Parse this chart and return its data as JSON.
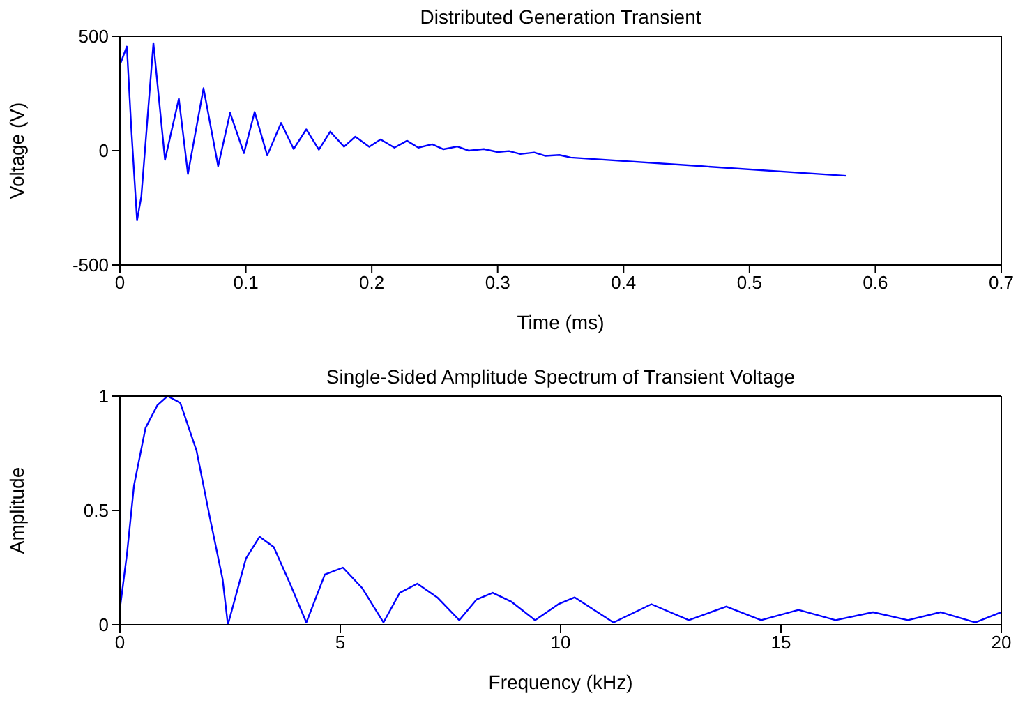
{
  "chart_data": [
    {
      "type": "line",
      "title": "Distributed Generation Transient",
      "xlabel": "Time (ms)",
      "ylabel": "Voltage (V)",
      "xlim": [
        0,
        0.7
      ],
      "xticks": [
        0,
        0.1,
        0.2,
        0.3,
        0.4,
        0.5,
        0.6,
        0.7
      ],
      "ylim": [
        -500,
        500
      ],
      "yticks": [
        -500,
        0,
        500
      ],
      "marker": "none",
      "line_style": "solid",
      "series": [
        {
          "color": "#0000ff",
          "x": [
            0.0007,
            0.0055,
            0.009,
            0.0136,
            0.017,
            0.0266,
            0.0358,
            0.0468,
            0.054,
            0.0664,
            0.078,
            0.0875,
            0.0985,
            0.107,
            0.117,
            0.128,
            0.138,
            0.148,
            0.158,
            0.167,
            0.178,
            0.187,
            0.198,
            0.207,
            0.215,
            0.218,
            0.228,
            0.237,
            0.248,
            0.257,
            0.268,
            0.277,
            0.289,
            0.3,
            0.309,
            0.318,
            0.329,
            0.338,
            0.349,
            0.358,
            0.462,
            0.577
          ],
          "values": [
            385,
            455,
            100,
            -305,
            -200,
            470,
            -40,
            227,
            -102,
            273,
            -68,
            165,
            -11,
            169,
            -21,
            121,
            7,
            93,
            4,
            83,
            17,
            61,
            17,
            49,
            23,
            13,
            43,
            13,
            28,
            6,
            18,
            0,
            7,
            -6,
            -2,
            -15,
            -8,
            -23,
            -19,
            -30,
            -68,
            -110
          ]
        }
      ]
    },
    {
      "type": "line",
      "title": "Single-Sided Amplitude Spectrum of Transient Voltage",
      "xlabel": "Frequency (kHz)",
      "ylabel": "Amplitude",
      "xlim": [
        0,
        20
      ],
      "xticks": [
        0,
        5,
        10,
        15,
        20
      ],
      "ylim": [
        0,
        1
      ],
      "yticks": [
        0,
        0.5,
        1
      ],
      "marker": "none",
      "line_style": "solid",
      "series": [
        {
          "color": "#0000ff",
          "x": [
            0,
            0.16,
            0.32,
            0.58,
            0.85,
            1.08,
            1.37,
            1.74,
            2.05,
            2.33,
            2.45,
            2.86,
            3.17,
            3.49,
            3.86,
            4.23,
            4.65,
            5.06,
            5.5,
            5.98,
            6.35,
            6.75,
            7.2,
            7.7,
            8.09,
            8.46,
            8.89,
            9.42,
            9.95,
            10.32,
            11.2,
            12.06,
            12.91,
            13.76,
            14.55,
            15.4,
            16.24,
            17.09,
            17.88,
            18.62,
            19.41,
            20
          ],
          "values": [
            0.07,
            0.31,
            0.61,
            0.86,
            0.96,
            1,
            0.97,
            0.76,
            0.46,
            0.2,
            0,
            0.29,
            0.385,
            0.34,
            0.18,
            0.01,
            0.22,
            0.25,
            0.16,
            0.01,
            0.14,
            0.18,
            0.12,
            0.02,
            0.11,
            0.14,
            0.1,
            0.02,
            0.09,
            0.12,
            0.01,
            0.09,
            0.02,
            0.08,
            0.02,
            0.065,
            0.02,
            0.055,
            0.02,
            0.055,
            0.01,
            0.055
          ]
        }
      ]
    }
  ]
}
